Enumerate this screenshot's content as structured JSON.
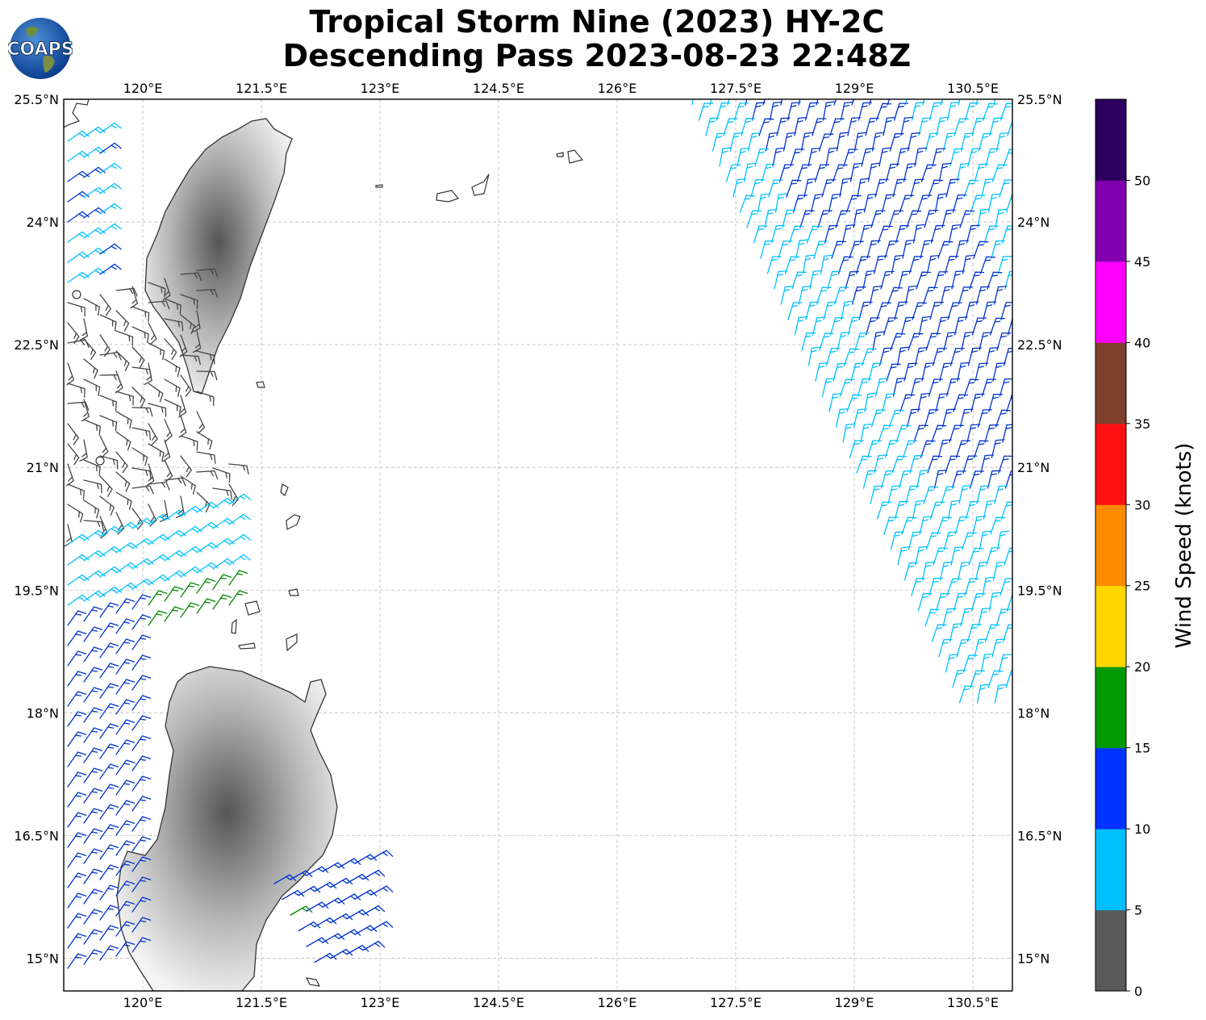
{
  "title": {
    "line1": "Tropical Storm Nine (2023) HY-2C",
    "line2": "Descending Pass 2023-08-23 22:48Z"
  },
  "logo": {
    "text": "COAPS",
    "icon": "globe-logo"
  },
  "map": {
    "lon_range": [
      119.0,
      131.0
    ],
    "lat_range": [
      14.6,
      25.5
    ],
    "lon_ticks": [
      "120°E",
      "121.5°E",
      "123°E",
      "124.5°E",
      "126°E",
      "127.5°E",
      "129°E",
      "130.5°E"
    ],
    "lat_ticks": [
      "25.5°N",
      "24°N",
      "22.5°N",
      "21°N",
      "19.5°N",
      "18°N",
      "16.5°N",
      "15°N"
    ]
  },
  "colorbar": {
    "label": "Wind Speed (knots)",
    "ticks": [
      "0",
      "5",
      "10",
      "15",
      "20",
      "25",
      "30",
      "35",
      "40",
      "45",
      "50"
    ],
    "colors": [
      "#595959",
      "#00bfff",
      "#0033ff",
      "#009900",
      "#ffd700",
      "#ff8c00",
      "#ff1111",
      "#7f3f2a",
      "#ff00ff",
      "#8200b0",
      "#2d0060"
    ]
  },
  "wind_colors": {
    "calm": "#444444",
    "light": "#00bfff",
    "moderate": "#0033cc",
    "fresh": "#008800"
  }
}
